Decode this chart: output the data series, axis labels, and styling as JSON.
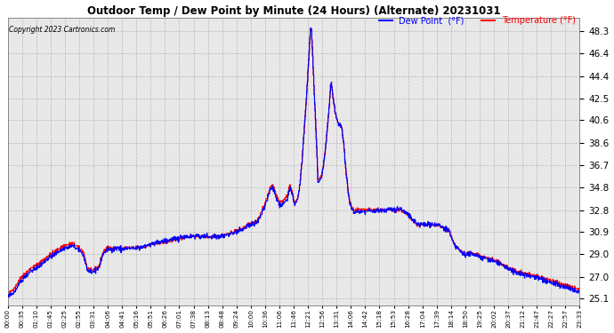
{
  "title": "Outdoor Temp / Dew Point by Minute (24 Hours) (Alternate) 20231031",
  "copyright": "Copyright 2023 Cartronics.com",
  "legend_dew": "Dew Point  (°F)",
  "legend_temp": "Temperature (°F)",
  "bg_color": "#ffffff",
  "plot_bg_color": "#ffffff",
  "grid_color": "#999999",
  "dew_color": "#0000ff",
  "temp_color": "#ff0000",
  "yticks": [
    25.1,
    27.0,
    29.0,
    30.9,
    32.8,
    34.8,
    36.7,
    38.6,
    40.6,
    42.5,
    44.4,
    46.4,
    48.3
  ],
  "ylim": [
    24.5,
    49.5
  ],
  "xtick_labels": [
    "00:00",
    "00:35",
    "01:10",
    "01:45",
    "02:25",
    "02:55",
    "03:31",
    "04:06",
    "04:41",
    "05:16",
    "05:51",
    "06:26",
    "07:01",
    "07:38",
    "08:13",
    "08:48",
    "09:24",
    "10:00",
    "10:36",
    "11:06",
    "11:46",
    "12:21",
    "12:56",
    "13:31",
    "14:06",
    "14:42",
    "15:18",
    "15:53",
    "16:28",
    "17:04",
    "17:39",
    "18:14",
    "18:50",
    "19:25",
    "20:02",
    "20:37",
    "21:12",
    "21:47",
    "22:27",
    "22:57",
    "23:33"
  ]
}
